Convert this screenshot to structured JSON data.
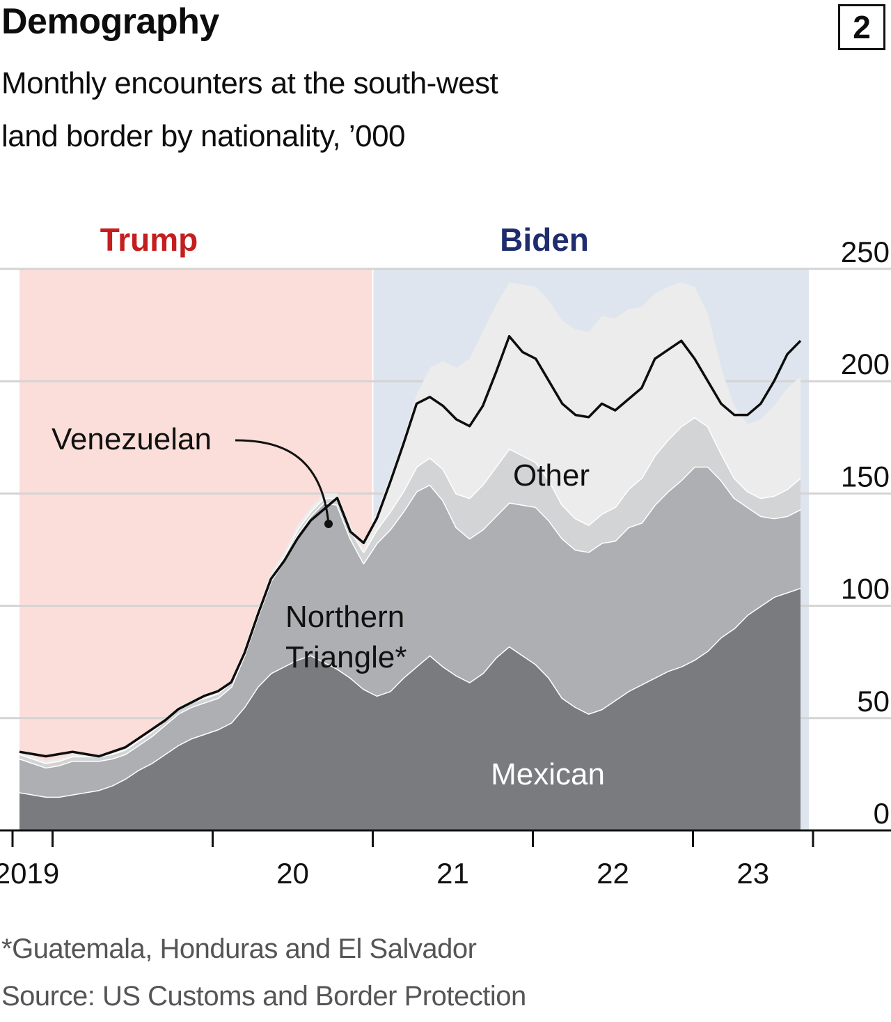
{
  "header": {
    "title": "Demography",
    "subtitle_line1": "Monthly encounters at the south-west",
    "subtitle_line2": "land border by nationality, ’000",
    "badge": "2"
  },
  "footer": {
    "footnote": "*Guatemala, Honduras and El Salvador",
    "source": "Source: US Customs and Border Protection"
  },
  "colors": {
    "trump_bg": "#fbded9",
    "biden_bg": "#dfe5ee",
    "trump_text": "#c41e1e",
    "biden_text": "#1f2d6e",
    "mexican": "#7a7b7f",
    "northern_triangle": "#aeafb2",
    "venezuelan": "#d3d4d6",
    "other": "#ececec",
    "total_line": "#0d0d0d",
    "grid": "#d4d4d4"
  },
  "chart_data": {
    "type": "area",
    "stacked": true,
    "ylabel": "",
    "ylim": [
      0,
      250
    ],
    "y_ticks": [
      0,
      50,
      100,
      150,
      200,
      250
    ],
    "y_tick_labels": [
      "0",
      "50",
      "100",
      "150",
      "200",
      "250"
    ],
    "x_tick_labels": [
      {
        "label": "2019",
        "date": "2019-01"
      },
      {
        "label": "20",
        "date": "2020-01"
      },
      {
        "label": "21",
        "date": "2021-01"
      },
      {
        "label": "22",
        "date": "2022-01"
      },
      {
        "label": "23",
        "date": "2023-01"
      }
    ],
    "x_range": [
      "2018-10",
      "2023-10"
    ],
    "periods": [
      {
        "label": "Trump",
        "start": "2018-10",
        "end": "2021-01"
      },
      {
        "label": "Biden",
        "start": "2021-01",
        "end": "2023-09"
      }
    ],
    "months": [
      "2018-10",
      "2018-11",
      "2018-12",
      "2019-01",
      "2019-02",
      "2019-03",
      "2019-04",
      "2019-05",
      "2019-06",
      "2019-07",
      "2019-08",
      "2019-09",
      "2019-10",
      "2019-11",
      "2019-12",
      "2020-01",
      "2020-02",
      "2020-03",
      "2020-04",
      "2020-05",
      "2020-06",
      "2020-07",
      "2020-08",
      "2020-09",
      "2020-10",
      "2020-11",
      "2020-12",
      "2021-01",
      "2021-02",
      "2021-03",
      "2021-04",
      "2021-05",
      "2021-06",
      "2021-07",
      "2021-08",
      "2021-09",
      "2021-10",
      "2021-11",
      "2021-12",
      "2022-01",
      "2022-02",
      "2022-03",
      "2022-04",
      "2022-05",
      "2022-06",
      "2022-07",
      "2022-08",
      "2022-09",
      "2022-10",
      "2022-11",
      "2022-12",
      "2023-01",
      "2023-02",
      "2023-03",
      "2023-04",
      "2023-05",
      "2023-06",
      "2023-07",
      "2023-08",
      "2023-09"
    ],
    "series": [
      {
        "name": "Mexican",
        "values": [
          17,
          16,
          15,
          15,
          16,
          17,
          18,
          20,
          23,
          27,
          30,
          34,
          38,
          41,
          43,
          45,
          48,
          55,
          64,
          70,
          73,
          76,
          78,
          75,
          72,
          68,
          63,
          60,
          62,
          68,
          73,
          78,
          73,
          69,
          66,
          70,
          77,
          82,
          78,
          74,
          68,
          59,
          55,
          52,
          54,
          58,
          62,
          65,
          68,
          71,
          73,
          76,
          80,
          86,
          90,
          96,
          100,
          104,
          106,
          108
        ]
      },
      {
        "name": "Northern Triangle",
        "values": [
          15,
          14,
          13,
          14,
          15,
          14,
          13,
          12,
          11,
          11,
          12,
          13,
          14,
          14,
          14,
          14,
          16,
          23,
          31,
          41,
          47,
          56,
          62,
          71,
          73,
          62,
          56,
          68,
          72,
          74,
          78,
          76,
          74,
          66,
          64,
          64,
          63,
          64,
          67,
          70,
          70,
          71,
          70,
          72,
          74,
          71,
          73,
          72,
          77,
          80,
          83,
          86,
          82,
          70,
          58,
          48,
          40,
          35,
          34,
          35
        ]
      },
      {
        "name": "Venezuelan",
        "values": [
          2,
          2,
          2,
          2,
          2,
          2,
          2,
          2,
          2,
          2,
          2,
          2,
          2,
          2,
          2,
          2,
          2,
          2,
          2,
          2,
          2,
          2,
          2,
          2,
          3,
          4,
          5,
          6,
          8,
          9,
          11,
          12,
          14,
          15,
          18,
          20,
          22,
          24,
          22,
          20,
          18,
          15,
          14,
          12,
          13,
          15,
          17,
          20,
          22,
          23,
          24,
          22,
          18,
          12,
          9,
          7,
          8,
          10,
          12,
          14
        ]
      },
      {
        "name": "Other",
        "values": [
          1,
          1,
          1,
          1,
          1,
          1,
          1,
          1,
          1,
          1,
          1,
          1,
          1,
          1,
          1,
          1,
          1,
          1,
          1,
          2,
          2,
          2,
          2,
          2,
          2,
          2,
          2,
          8,
          16,
          24,
          32,
          40,
          48,
          56,
          62,
          68,
          72,
          74,
          76,
          78,
          80,
          82,
          84,
          86,
          88,
          84,
          80,
          76,
          72,
          68,
          64,
          58,
          50,
          38,
          32,
          30,
          35,
          40,
          45,
          45
        ]
      },
      {
        "name": "Total",
        "values": [
          35,
          34,
          33,
          34,
          35,
          34,
          33,
          35,
          37,
          41,
          45,
          49,
          54,
          57,
          60,
          62,
          66,
          79,
          96,
          112,
          120,
          130,
          138,
          143,
          148,
          133,
          128,
          139,
          155,
          172,
          190,
          193,
          189,
          183,
          180,
          189,
          204,
          220,
          213,
          210,
          200,
          190,
          185,
          184,
          190,
          187,
          192,
          197,
          210,
          214,
          218,
          210,
          200,
          190,
          185,
          185,
          190,
          200,
          212,
          218
        ]
      }
    ],
    "series_labels": {
      "other": "Other",
      "northern_triangle_line1": "Northern",
      "northern_triangle_line2": "Triangle*",
      "mexican": "Mexican",
      "venezuelan": "Venezuelan",
      "trump": "Trump",
      "biden": "Biden"
    }
  }
}
